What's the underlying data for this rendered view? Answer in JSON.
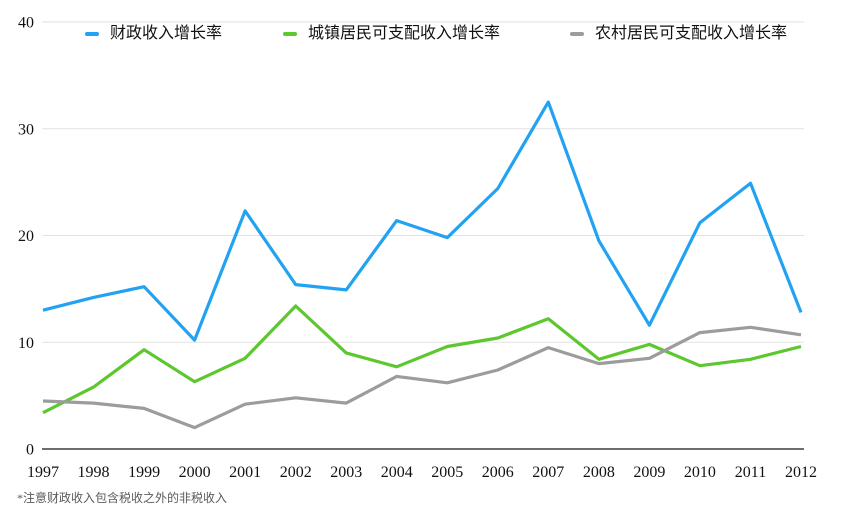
{
  "chart_data": {
    "type": "line",
    "title": "",
    "xlabel": "",
    "ylabel": "",
    "x": [
      "1997",
      "1998",
      "1999",
      "2000",
      "2001",
      "2002",
      "2003",
      "2004",
      "2005",
      "2006",
      "2007",
      "2008",
      "2009",
      "2010",
      "2011",
      "2012"
    ],
    "series": [
      {
        "name": "财政收入增长率",
        "color": "#22A2F2",
        "values": [
          13.0,
          14.2,
          15.2,
          10.2,
          22.3,
          15.4,
          14.9,
          21.4,
          19.8,
          24.4,
          32.5,
          19.5,
          11.6,
          21.2,
          24.9,
          12.8
        ]
      },
      {
        "name": "城镇居民可支配收入增长率",
        "color": "#5DC72F",
        "values": [
          3.4,
          5.8,
          9.3,
          6.3,
          8.5,
          13.4,
          9.0,
          7.7,
          9.6,
          10.4,
          12.2,
          8.4,
          9.8,
          7.8,
          8.4,
          9.6
        ]
      },
      {
        "name": "农村居民可支配收入增长率",
        "color": "#9C9C9C",
        "values": [
          4.5,
          4.3,
          3.8,
          2.0,
          4.2,
          4.8,
          4.3,
          6.8,
          6.2,
          7.4,
          9.5,
          8.0,
          8.5,
          10.9,
          11.4,
          10.7
        ]
      }
    ],
    "ylim": [
      0,
      40
    ],
    "yticks": [
      0,
      10,
      20,
      30,
      40
    ],
    "grid": "horizontal",
    "legend_position": "top"
  },
  "footnote": "*注意财政收入包含税收之外的非税收入",
  "colors": {
    "grid": "#E2E2E2",
    "axis": "#3D3D3D",
    "background": "#FFFFFF"
  }
}
